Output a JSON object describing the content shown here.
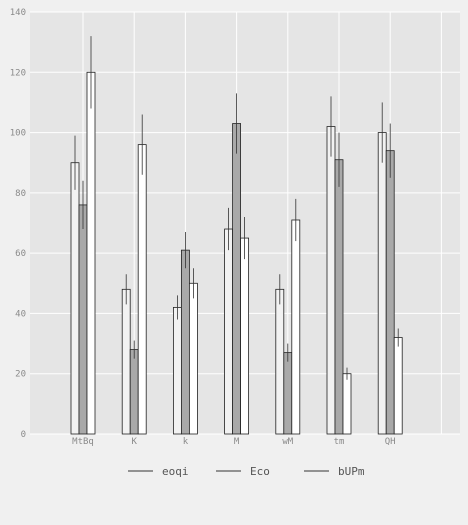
{
  "chart_data": {
    "type": "bar",
    "title": "",
    "xlabel": "",
    "ylabel": "",
    "categories": [
      "MtBq",
      "K",
      "k",
      "M",
      "wM",
      "tm",
      "QH"
    ],
    "ylim": [
      0,
      140
    ],
    "yticks": [
      0,
      20,
      40,
      60,
      80,
      100,
      120,
      140
    ],
    "grid": true,
    "legend_position": "bottom",
    "series": [
      {
        "name": "eoqi",
        "color": "#f2f2f2",
        "values": [
          90,
          48,
          42,
          68,
          48,
          102,
          100
        ],
        "errors": [
          9,
          5,
          4,
          7,
          5,
          10,
          10
        ]
      },
      {
        "name": "Eco",
        "color": "#a9a9a9",
        "values": [
          76,
          28,
          61,
          103,
          27,
          91,
          94
        ],
        "errors": [
          8,
          3,
          6,
          10,
          3,
          9,
          9
        ]
      },
      {
        "name": "bUPm",
        "color": "#ffffff",
        "values": [
          120,
          96,
          50,
          65,
          71,
          20,
          32
        ],
        "errors": [
          12,
          10,
          5,
          7,
          7,
          2,
          3
        ]
      }
    ]
  }
}
